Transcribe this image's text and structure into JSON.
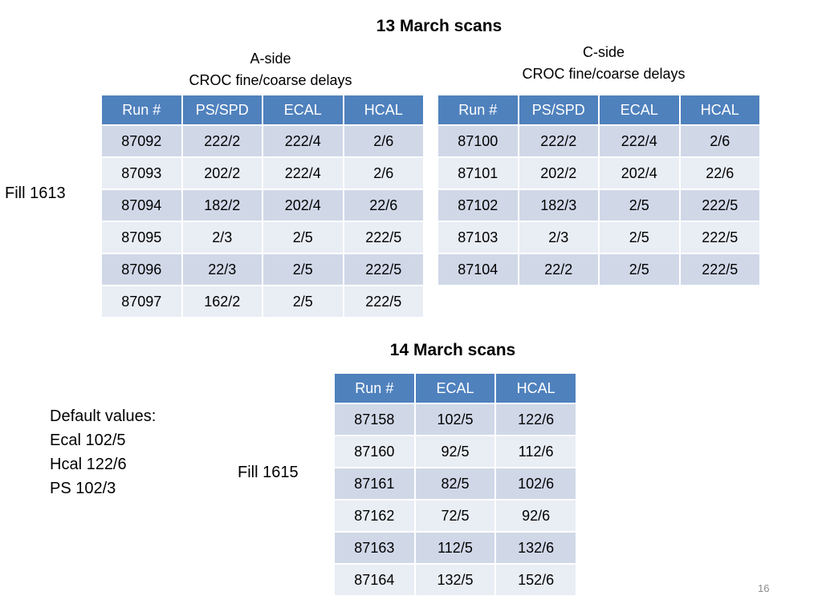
{
  "slide": {
    "title_13": "13 March scans",
    "title_14": "14 March scans",
    "a_side_line1": "A-side",
    "a_side_line2": "CROC fine/coarse delays",
    "c_side_line1": "C-side",
    "c_side_line2": "CROC fine/coarse delays",
    "fill_1613": "Fill 1613",
    "fill_1615": "Fill 1615",
    "defaults": [
      "Default values:",
      "Ecal 102/5",
      "Hcal 122/6",
      "PS 102/3"
    ],
    "page_number": "16"
  },
  "table_a": {
    "headers": [
      "Run #",
      "PS/SPD",
      "ECAL",
      "HCAL"
    ],
    "rows": [
      [
        "87092",
        "222/2",
        "222/4",
        "2/6"
      ],
      [
        "87093",
        "202/2",
        "222/4",
        "2/6"
      ],
      [
        "87094",
        "182/2",
        "202/4",
        "22/6"
      ],
      [
        "87095",
        "2/3",
        "2/5",
        "222/5"
      ],
      [
        "87096",
        "22/3",
        "2/5",
        "222/5"
      ],
      [
        "87097",
        "162/2",
        "2/5",
        "222/5"
      ]
    ]
  },
  "table_c": {
    "headers": [
      "Run #",
      "PS/SPD",
      "ECAL",
      "HCAL"
    ],
    "rows": [
      [
        "87100",
        "222/2",
        "222/4",
        "2/6"
      ],
      [
        "87101",
        "202/2",
        "202/4",
        "22/6"
      ],
      [
        "87102",
        "182/3",
        "2/5",
        "222/5"
      ],
      [
        "87103",
        "2/3",
        "2/5",
        "222/5"
      ],
      [
        "87104",
        "22/2",
        "2/5",
        "222/5"
      ]
    ]
  },
  "table_14": {
    "headers": [
      "Run #",
      "ECAL",
      "HCAL"
    ],
    "rows": [
      [
        "87158",
        "102/5",
        "122/6"
      ],
      [
        "87160",
        "92/5",
        "112/6"
      ],
      [
        "87161",
        "82/5",
        "102/6"
      ],
      [
        "87162",
        "72/5",
        "92/6"
      ],
      [
        "87163",
        "112/5",
        "132/6"
      ],
      [
        "87164",
        "132/5",
        "152/6"
      ]
    ]
  }
}
